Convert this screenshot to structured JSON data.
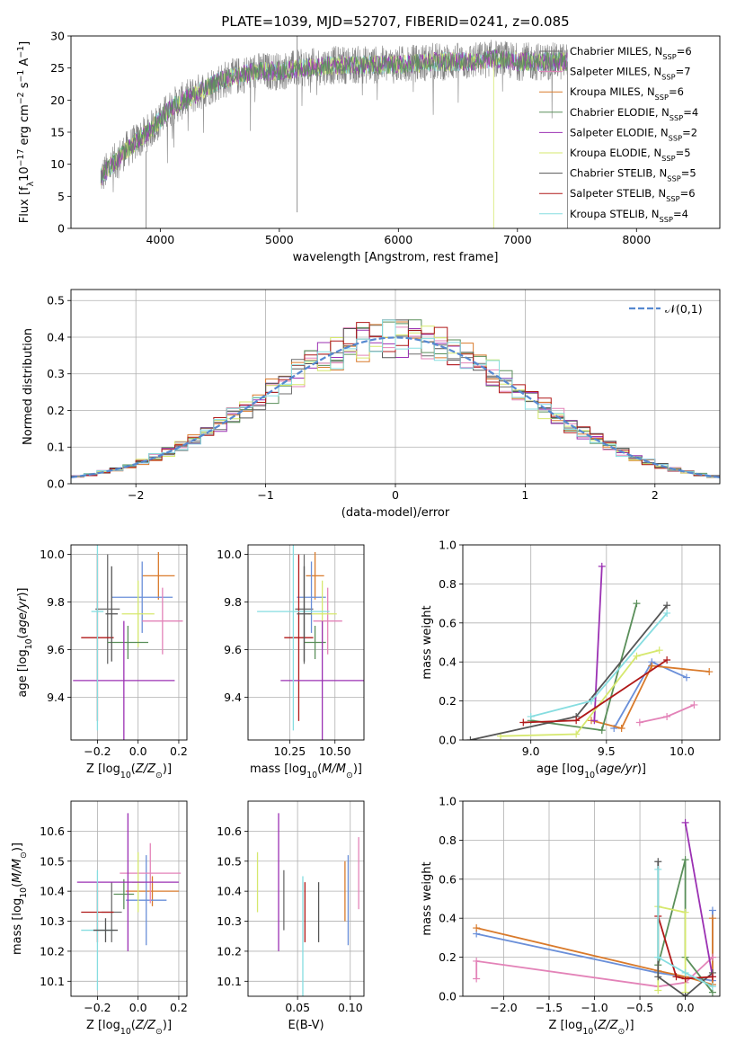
{
  "title": "PLATE=1039, MJD=52707, FIBERID=0241, z=0.085",
  "colors": {
    "Chabrier MILES": "#6d6d6d",
    "Salpeter MILES": "#e383b8",
    "Kroupa MILES": "#d97a2b",
    "Chabrier ELODIE": "#5a8f5a",
    "Salpeter ELODIE": "#9b31b3",
    "Kroupa ELODIE": "#d6e86e",
    "Chabrier STELIB": "#555555",
    "Salpeter STELIB": "#b01818",
    "Kroupa STELIB": "#86dde0",
    "Extra": "#6a8fd9",
    "Gauss": "#5588d0"
  },
  "chart_data": [
    {
      "type": "line",
      "panel": "spectrum",
      "xlabel": "wavelength [Angstrom, rest frame]",
      "ylabel": "Flux [f_λ 10^-17 erg cm^-2 s^-1 A^-1]",
      "xlim": [
        3250,
        8700
      ],
      "ylim": [
        0,
        30
      ],
      "xticks": [
        4000,
        5000,
        6000,
        7000,
        8000
      ],
      "yticks": [
        0,
        5,
        10,
        15,
        20,
        25,
        30
      ],
      "legend_position": "right",
      "legend": [
        {
          "name": "Chabrier MILES",
          "nssp": "6"
        },
        {
          "name": "Salpeter MILES",
          "nssp": "7"
        },
        {
          "name": "Kroupa MILES",
          "nssp": "6"
        },
        {
          "name": "Chabrier ELODIE",
          "nssp": "4"
        },
        {
          "name": "Salpeter ELODIE",
          "nssp": "2"
        },
        {
          "name": "Kroupa ELODIE",
          "nssp": "5"
        },
        {
          "name": "Chabrier STELIB",
          "nssp": "5"
        },
        {
          "name": "Salpeter STELIB",
          "nssp": "6"
        },
        {
          "name": "Kroupa STELIB",
          "nssp": "4"
        }
      ],
      "continuum": {
        "x": [
          3500,
          3700,
          3900,
          4000,
          4100,
          4300,
          4500,
          4800,
          5000,
          5200,
          5500,
          5800,
          6000,
          6300,
          6600,
          6800,
          7000,
          7200,
          7400
        ],
        "y": [
          8.0,
          12.0,
          15.0,
          17.0,
          19.0,
          21.0,
          23.0,
          24.5,
          24.5,
          25.0,
          25.5,
          25.5,
          25.5,
          26.0,
          26.0,
          26.5,
          26.0,
          26.0,
          26.0
        ]
      }
    },
    {
      "type": "bar",
      "panel": "residuals",
      "xlabel": "(data-model)/error",
      "ylabel": "Normed distribution",
      "xlim": [
        -2.5,
        2.5
      ],
      "ylim": [
        0,
        0.53
      ],
      "xticks": [
        -2,
        -1,
        0,
        1,
        2
      ],
      "yticks": [
        0.0,
        0.1,
        0.2,
        0.3,
        0.4,
        0.5
      ],
      "bin_width": 0.1,
      "bin_start": -2.5,
      "legend": "𝒩(0,1)",
      "legend_position": "top-right",
      "reference_curve": {
        "mean": 0,
        "sigma": 1
      }
    },
    {
      "type": "scatter",
      "panel": "age_vs_Z",
      "xlabel": "Z [log10(Z/Z⊙)]",
      "ylabel": "age [log10(age/yr)]",
      "xlim": [
        -0.33,
        0.24
      ],
      "ylim": [
        9.22,
        10.04
      ],
      "xticks": [
        -0.2,
        0.0,
        0.2
      ],
      "yticks": [
        9.4,
        9.6,
        9.8,
        10.0
      ],
      "errorbars": [
        {
          "model": "Chabrier MILES",
          "x": -0.15,
          "xerr": 0.06,
          "y": 9.77,
          "yerr": 0.23
        },
        {
          "model": "Kroupa MILES",
          "x": 0.1,
          "xerr": 0.08,
          "y": 9.91,
          "yerr": 0.1
        },
        {
          "model": "Extra",
          "x": 0.02,
          "xerr": 0.15,
          "y": 9.82,
          "yerr": 0.15
        },
        {
          "model": "Salpeter MILES",
          "x": 0.12,
          "xerr": 0.1,
          "y": 9.72,
          "yerr": 0.14
        },
        {
          "model": "Kroupa ELODIE",
          "x": 0.0,
          "xerr": 0.08,
          "y": 9.75,
          "yerr": 0.14
        },
        {
          "model": "Chabrier ELODIE",
          "x": -0.05,
          "xerr": 0.1,
          "y": 9.63,
          "yerr": 0.07
        },
        {
          "model": "Salpeter STELIB",
          "x": -0.2,
          "xerr": 0.08,
          "y": 9.65,
          "yerr": 0.35
        },
        {
          "model": "Salpeter ELODIE",
          "x": -0.07,
          "xerr": 0.25,
          "y": 9.47,
          "yerr": 0.25
        },
        {
          "model": "Kroupa STELIB",
          "x": -0.2,
          "xerr": 0.03,
          "y": 9.76,
          "yerr": 0.5
        },
        {
          "model": "Chabrier STELIB",
          "x": -0.13,
          "xerr": 0.03,
          "y": 9.75,
          "yerr": 0.2
        }
      ]
    },
    {
      "type": "scatter",
      "panel": "age_vs_mass",
      "xlabel": "mass [log10(M/M⊙)]",
      "ylabel": "",
      "xlim": [
        10.02,
        10.66
      ],
      "ylim": [
        9.22,
        10.04
      ],
      "xticks": [
        10.25,
        10.5
      ],
      "yticks": [
        9.4,
        9.6,
        9.8,
        10.0
      ],
      "errorbars": [
        {
          "model": "Chabrier MILES",
          "x": 10.33,
          "xerr": 0.05,
          "y": 9.77,
          "yerr": 0.23
        },
        {
          "model": "Kroupa MILES",
          "x": 10.39,
          "xerr": 0.05,
          "y": 9.91,
          "yerr": 0.1
        },
        {
          "model": "Extra",
          "x": 10.37,
          "xerr": 0.08,
          "y": 9.82,
          "yerr": 0.15
        },
        {
          "model": "Salpeter MILES",
          "x": 10.46,
          "xerr": 0.08,
          "y": 9.72,
          "yerr": 0.14
        },
        {
          "model": "Kroupa ELODIE",
          "x": 10.43,
          "xerr": 0.08,
          "y": 9.75,
          "yerr": 0.14
        },
        {
          "model": "Chabrier ELODIE",
          "x": 10.39,
          "xerr": 0.06,
          "y": 9.63,
          "yerr": 0.07
        },
        {
          "model": "Salpeter STELIB",
          "x": 10.3,
          "xerr": 0.08,
          "y": 9.65,
          "yerr": 0.35
        },
        {
          "model": "Salpeter ELODIE",
          "x": 10.43,
          "xerr": 0.23,
          "y": 9.47,
          "yerr": 0.25
        },
        {
          "model": "Kroupa STELIB",
          "x": 10.27,
          "xerr": 0.2,
          "y": 9.76,
          "yerr": 0.5
        },
        {
          "model": "Chabrier STELIB",
          "x": 10.33,
          "xerr": 0.04,
          "y": 9.75,
          "yerr": 0.2
        }
      ]
    },
    {
      "type": "line",
      "panel": "mass_weight_vs_age",
      "xlabel": "age [log10(age/yr)]",
      "ylabel": "mass weight",
      "xlim": [
        8.55,
        10.25
      ],
      "ylim": [
        0,
        1.0
      ],
      "xticks": [
        9.0,
        9.5,
        10.0
      ],
      "yticks": [
        0.0,
        0.2,
        0.4,
        0.6,
        0.8,
        1.0
      ],
      "series": [
        {
          "model": "Extra",
          "x": [
            9.55,
            9.8,
            10.03
          ],
          "y": [
            0.06,
            0.4,
            0.32
          ]
        },
        {
          "model": "Kroupa MILES",
          "x": [
            9.4,
            9.6,
            9.8,
            10.18
          ],
          "y": [
            0.1,
            0.06,
            0.38,
            0.35
          ]
        },
        {
          "model": "Salpeter MILES",
          "x": [
            9.72,
            9.9,
            10.08
          ],
          "y": [
            0.09,
            0.12,
            0.18
          ]
        },
        {
          "model": "Chabrier ELODIE",
          "x": [
            9.0,
            9.47,
            9.7
          ],
          "y": [
            0.1,
            0.05,
            0.7
          ]
        },
        {
          "model": "Salpeter ELODIE",
          "x": [
            9.42,
            9.47
          ],
          "y": [
            0.1,
            0.89
          ]
        },
        {
          "model": "Kroupa ELODIE",
          "x": [
            8.8,
            9.3,
            9.7,
            9.85
          ],
          "y": [
            0.02,
            0.03,
            0.43,
            0.46
          ]
        },
        {
          "model": "Chabrier STELIB",
          "x": [
            8.6,
            9.3,
            9.9
          ],
          "y": [
            0.0,
            0.12,
            0.69
          ]
        },
        {
          "model": "Salpeter STELIB",
          "x": [
            8.95,
            9.3,
            9.9
          ],
          "y": [
            0.09,
            0.1,
            0.41
          ]
        },
        {
          "model": "Kroupa STELIB",
          "x": [
            9.0,
            9.4,
            9.9
          ],
          "y": [
            0.12,
            0.2,
            0.65
          ]
        }
      ]
    },
    {
      "type": "scatter",
      "panel": "mass_vs_Z",
      "xlabel": "Z [log10(Z/Z⊙)]",
      "ylabel": "mass [log10(M/M⊙)]",
      "xlim": [
        -0.33,
        0.24
      ],
      "ylim": [
        10.05,
        10.7
      ],
      "xticks": [
        -0.2,
        0.0,
        0.2
      ],
      "yticks": [
        10.1,
        10.2,
        10.3,
        10.4,
        10.5,
        10.6
      ],
      "errorbars": [
        {
          "model": "Chabrier MILES",
          "x": -0.13,
          "xerr": 0.05,
          "y": 10.33,
          "yerr": 0.1
        },
        {
          "model": "Kroupa MILES",
          "x": 0.07,
          "xerr": 0.13,
          "y": 10.4,
          "yerr": 0.05
        },
        {
          "model": "Extra",
          "x": 0.04,
          "xerr": 0.1,
          "y": 10.37,
          "yerr": 0.15
        },
        {
          "model": "Salpeter MILES",
          "x": 0.06,
          "xerr": 0.15,
          "y": 10.46,
          "yerr": 0.1
        },
        {
          "model": "Kroupa ELODIE",
          "x": 0.0,
          "xerr": 0.03,
          "y": 10.43,
          "yerr": 0.1
        },
        {
          "model": "Chabrier ELODIE",
          "x": -0.07,
          "xerr": 0.05,
          "y": 10.39,
          "yerr": 0.05
        },
        {
          "model": "Salpeter STELIB",
          "x": -0.2,
          "xerr": 0.08,
          "y": 10.33,
          "yerr": 0.1
        },
        {
          "model": "Salpeter ELODIE",
          "x": -0.05,
          "xerr": 0.25,
          "y": 10.43,
          "yerr": 0.23
        },
        {
          "model": "Kroupa STELIB",
          "x": -0.2,
          "xerr": 0.08,
          "y": 10.27,
          "yerr": 0.2
        },
        {
          "model": "Chabrier STELIB",
          "x": -0.16,
          "xerr": 0.06,
          "y": 10.27,
          "yerr": 0.04
        }
      ]
    },
    {
      "type": "scatter",
      "panel": "mass_vs_ebv",
      "xlabel": "E(B-V)",
      "ylabel": "",
      "xlim": [
        0.003,
        0.113
      ],
      "ylim": [
        10.05,
        10.7
      ],
      "xticks": [
        0.05,
        0.1
      ],
      "yticks": [
        10.1,
        10.2,
        10.3,
        10.4,
        10.5,
        10.6
      ],
      "errorbars": [
        {
          "model": "Kroupa ELODIE",
          "x": 0.012,
          "yerr": 0.1,
          "y": 10.43
        },
        {
          "model": "Salpeter ELODIE",
          "x": 0.032,
          "yerr": 0.23,
          "y": 10.43
        },
        {
          "model": "Chabrier MILES",
          "x": 0.037,
          "yerr": 0.1,
          "y": 10.37
        },
        {
          "model": "Kroupa STELIB",
          "x": 0.055,
          "yerr": 0.2,
          "y": 10.25
        },
        {
          "model": "Salpeter STELIB",
          "x": 0.057,
          "yerr": 0.1,
          "y": 10.33
        },
        {
          "model": "Chabrier STELIB",
          "x": 0.07,
          "yerr": 0.1,
          "y": 10.33
        },
        {
          "model": "Kroupa MILES",
          "x": 0.095,
          "yerr": 0.1,
          "y": 10.4
        },
        {
          "model": "Extra",
          "x": 0.098,
          "yerr": 0.15,
          "y": 10.37
        },
        {
          "model": "Salpeter MILES",
          "x": 0.108,
          "yerr": 0.12,
          "y": 10.46
        }
      ]
    },
    {
      "type": "line",
      "panel": "mass_weight_vs_Z",
      "xlabel": "Z [log10(Z/Z⊙)]",
      "ylabel": "mass weight",
      "xlim": [
        -2.45,
        0.38
      ],
      "ylim": [
        0,
        1.0
      ],
      "xticks": [
        -2.0,
        -1.5,
        -1.0,
        -0.5,
        0.0
      ],
      "yticks": [
        0.0,
        0.2,
        0.4,
        0.6,
        0.8,
        1.0
      ],
      "series": [
        {
          "model": "Extra",
          "x": [
            -2.3,
            -0.3,
            0.0,
            0.3,
            0.3
          ],
          "y": [
            0.32,
            0.12,
            0.1,
            0.08,
            0.44
          ]
        },
        {
          "model": "Kroupa MILES",
          "x": [
            -2.3,
            -0.3,
            0.0,
            0.3,
            0.3
          ],
          "y": [
            0.35,
            0.13,
            0.1,
            0.06,
            0.4
          ]
        },
        {
          "model": "Salpeter MILES",
          "x": [
            -2.3,
            -2.3,
            -0.3,
            0.0,
            0.3
          ],
          "y": [
            0.09,
            0.18,
            0.05,
            0.07,
            0.2
          ]
        },
        {
          "model": "Chabrier ELODIE",
          "x": [
            -0.3,
            0.0,
            0.0,
            0.3
          ],
          "y": [
            0.16,
            0.7,
            0.2,
            0.02
          ]
        },
        {
          "model": "Salpeter ELODIE",
          "x": [
            0.0,
            0.3
          ],
          "y": [
            0.89,
            0.1
          ]
        },
        {
          "model": "Kroupa ELODIE",
          "x": [
            -0.3,
            -0.3,
            0.0,
            0.0
          ],
          "y": [
            0.03,
            0.46,
            0.43,
            0.02
          ]
        },
        {
          "model": "Chabrier STELIB",
          "x": [
            -0.3,
            -0.3,
            0.0,
            0.3
          ],
          "y": [
            0.69,
            0.1,
            0.0,
            0.12
          ]
        },
        {
          "model": "Salpeter STELIB",
          "x": [
            -0.3,
            -0.1,
            0.0,
            0.3
          ],
          "y": [
            0.41,
            0.1,
            0.09,
            0.1
          ]
        },
        {
          "model": "Kroupa STELIB",
          "x": [
            -0.3,
            -0.3,
            0.0,
            0.3
          ],
          "y": [
            0.65,
            0.2,
            0.12,
            0.05
          ]
        }
      ]
    }
  ]
}
